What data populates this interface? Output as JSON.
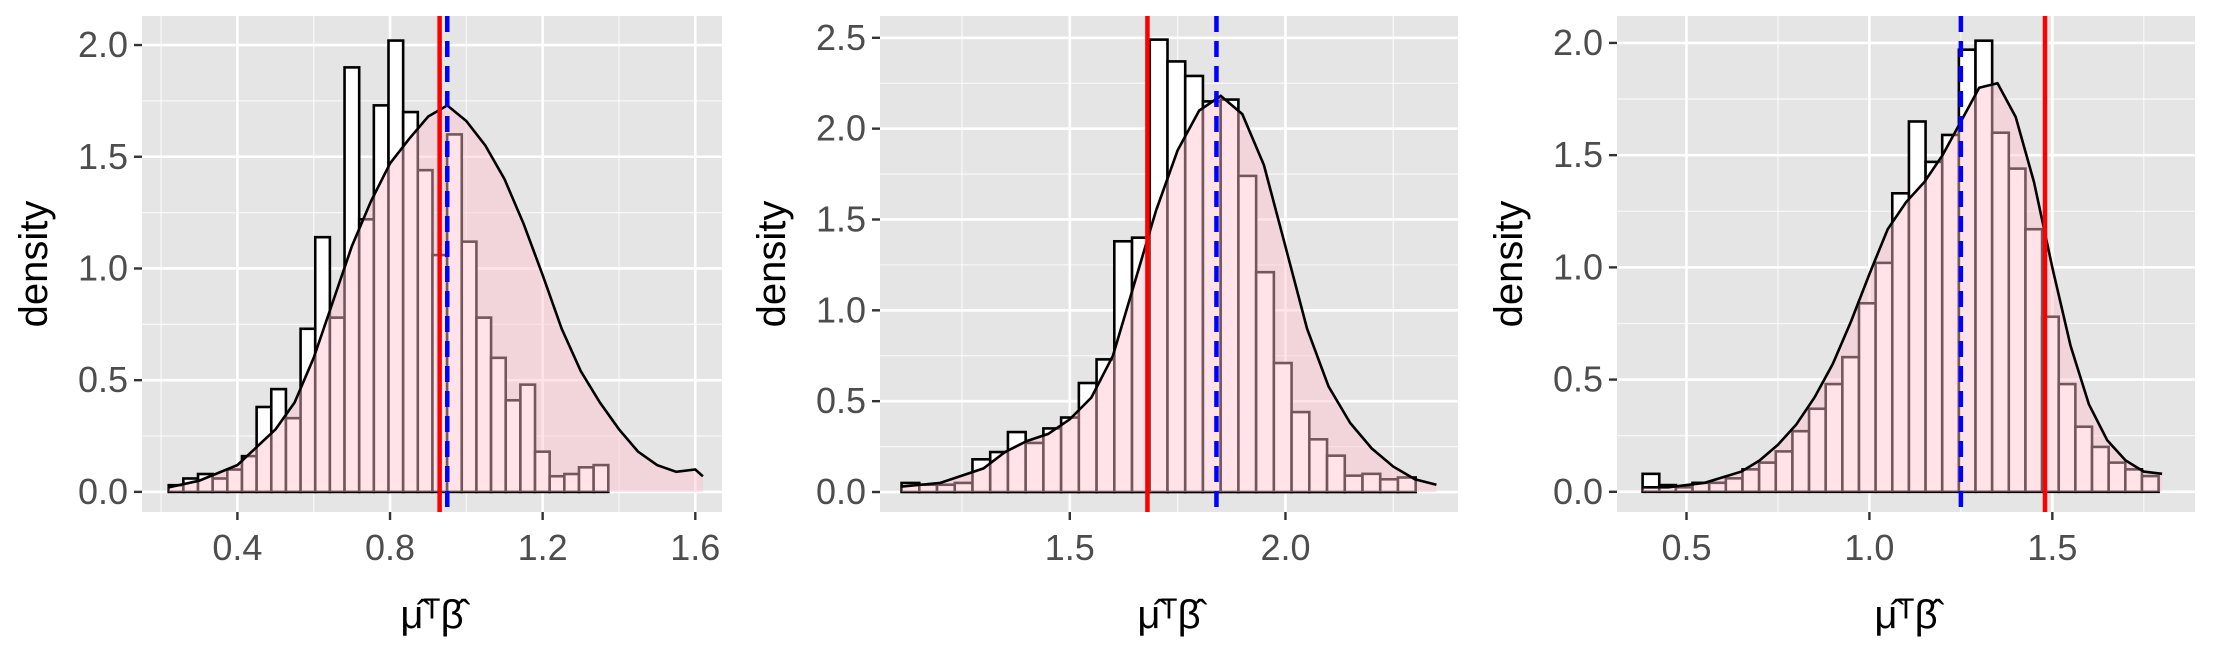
{
  "chart_data": [
    {
      "type": "bar",
      "ylabel": "density",
      "xlabel": "μ̂ᵀβ̂",
      "xlim": [
        0.15,
        1.67
      ],
      "ylim": [
        -0.09,
        2.13
      ],
      "xticks": [
        0.4,
        0.8,
        1.2,
        1.6
      ],
      "yticks": [
        0.0,
        0.5,
        1.0,
        1.5,
        2.0
      ],
      "grid": true,
      "bins": {
        "start": 0.22,
        "width": 0.0384,
        "density": [
          0.03,
          0.06,
          0.08,
          0.06,
          0.1,
          0.16,
          0.38,
          0.46,
          0.33,
          0.73,
          1.14,
          0.78,
          1.9,
          1.22,
          1.73,
          2.02,
          1.7,
          1.44,
          1.06,
          1.6,
          1.12,
          0.78,
          0.6,
          0.41,
          0.48,
          0.18,
          0.07,
          0.08,
          0.11,
          0.12
        ]
      },
      "density_curve": {
        "x": [
          0.22,
          0.3,
          0.4,
          0.5,
          0.55,
          0.6,
          0.65,
          0.7,
          0.75,
          0.8,
          0.85,
          0.9,
          0.95,
          1.0,
          1.05,
          1.1,
          1.15,
          1.2,
          1.25,
          1.3,
          1.35,
          1.4,
          1.45,
          1.5,
          1.55,
          1.6,
          1.62
        ],
        "y": [
          0.02,
          0.05,
          0.12,
          0.28,
          0.4,
          0.6,
          0.85,
          1.1,
          1.3,
          1.47,
          1.58,
          1.68,
          1.73,
          1.66,
          1.55,
          1.4,
          1.2,
          0.97,
          0.73,
          0.54,
          0.4,
          0.28,
          0.18,
          0.12,
          0.09,
          0.1,
          0.07
        ]
      },
      "vlines": [
        {
          "x": 0.93,
          "color": "#ff0000",
          "style": "solid"
        },
        {
          "x": 0.95,
          "color": "#0000ff",
          "style": "dashed"
        }
      ]
    },
    {
      "type": "bar",
      "ylabel": "density",
      "xlabel": "μ̂ᵀβ̂",
      "xlim": [
        1.06,
        2.4
      ],
      "ylim": [
        -0.11,
        2.62
      ],
      "xticks": [
        1.5,
        2.0
      ],
      "yticks": [
        0.0,
        0.5,
        1.0,
        1.5,
        2.0,
        2.5
      ],
      "grid": true,
      "bins": {
        "start": 1.11,
        "width": 0.0411,
        "density": [
          0.05,
          0.04,
          0.04,
          0.05,
          0.18,
          0.22,
          0.33,
          0.27,
          0.35,
          0.41,
          0.6,
          0.73,
          1.38,
          1.4,
          2.49,
          2.37,
          2.29,
          2.15,
          2.16,
          1.74,
          1.21,
          0.71,
          0.44,
          0.29,
          0.2,
          0.09,
          0.1,
          0.07,
          0.08
        ]
      },
      "density_curve": {
        "x": [
          1.11,
          1.2,
          1.3,
          1.35,
          1.4,
          1.45,
          1.5,
          1.55,
          1.6,
          1.65,
          1.7,
          1.75,
          1.8,
          1.85,
          1.9,
          1.95,
          2.0,
          2.05,
          2.1,
          2.15,
          2.2,
          2.25,
          2.3,
          2.35
        ],
        "y": [
          0.03,
          0.05,
          0.13,
          0.22,
          0.28,
          0.32,
          0.4,
          0.52,
          0.75,
          1.15,
          1.55,
          1.88,
          2.1,
          2.18,
          2.08,
          1.8,
          1.35,
          0.9,
          0.58,
          0.38,
          0.24,
          0.14,
          0.07,
          0.04
        ]
      },
      "vlines": [
        {
          "x": 1.68,
          "color": "#ff0000",
          "style": "solid"
        },
        {
          "x": 1.84,
          "color": "#0000ff",
          "style": "dashed"
        }
      ]
    },
    {
      "type": "bar",
      "ylabel": "density",
      "xlabel": "μ̂ᵀβ̂",
      "xlim": [
        0.31,
        1.89
      ],
      "ylim": [
        -0.09,
        2.12
      ],
      "xticks": [
        0.5,
        1.0,
        1.5
      ],
      "yticks": [
        0.0,
        0.5,
        1.0,
        1.5,
        2.0
      ],
      "grid": true,
      "bins": {
        "start": 0.38,
        "width": 0.0455,
        "density": [
          0.08,
          0.03,
          0.02,
          0.04,
          0.04,
          0.06,
          0.1,
          0.13,
          0.18,
          0.27,
          0.37,
          0.48,
          0.6,
          0.84,
          1.02,
          1.33,
          1.65,
          1.47,
          1.59,
          1.97,
          2.01,
          1.6,
          1.44,
          1.17,
          0.78,
          0.48,
          0.29,
          0.2,
          0.13,
          0.1,
          0.07
        ]
      },
      "density_curve": {
        "x": [
          0.38,
          0.45,
          0.55,
          0.65,
          0.7,
          0.75,
          0.8,
          0.85,
          0.9,
          0.95,
          1.0,
          1.05,
          1.1,
          1.15,
          1.2,
          1.25,
          1.3,
          1.35,
          1.4,
          1.45,
          1.5,
          1.55,
          1.6,
          1.65,
          1.7,
          1.75,
          1.8
        ],
        "y": [
          0.02,
          0.02,
          0.04,
          0.09,
          0.14,
          0.21,
          0.3,
          0.42,
          0.57,
          0.76,
          0.97,
          1.17,
          1.29,
          1.38,
          1.5,
          1.65,
          1.8,
          1.82,
          1.67,
          1.38,
          1.0,
          0.65,
          0.39,
          0.23,
          0.14,
          0.09,
          0.08
        ]
      },
      "vlines": [
        {
          "x": 1.48,
          "color": "#ff0000",
          "style": "solid"
        },
        {
          "x": 1.25,
          "color": "#0000ff",
          "style": "dashed"
        }
      ]
    }
  ],
  "colors": {
    "panel_background": "#e5e5e5",
    "grid": "#ffffff",
    "bar_fill": "#ffffff",
    "bar_outline": "#000000",
    "density_fill": "#ffc0cb",
    "density_line": "#000000",
    "tick_text": "#4d4d4d"
  }
}
